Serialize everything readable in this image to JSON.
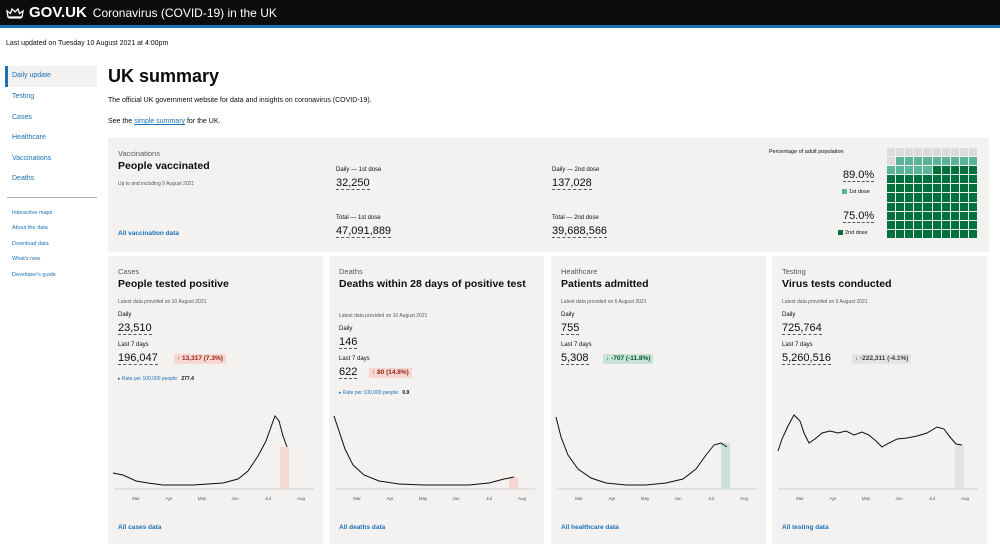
{
  "header": {
    "brand": "GOV.UK",
    "service": "Coronavirus (COVID-19) in the UK"
  },
  "last_updated": "Last updated on Tuesday 10 August 2021 at 4:00pm",
  "nav": {
    "primary": [
      "Daily update",
      "Testing",
      "Cases",
      "Healthcare",
      "Vaccinations",
      "Deaths"
    ],
    "secondary": [
      "Interactive maps",
      "About the data",
      "Download data",
      "What's new",
      "Developer's guide"
    ]
  },
  "page": {
    "title": "UK summary",
    "intro": "The official UK government website for data and insights on coronavirus (COVID-19).",
    "see_prefix": "See the ",
    "see_link": "simple summary",
    "see_suffix": " for the UK."
  },
  "vaccinations": {
    "caption": "Vaccinations",
    "heading": "People vaccinated",
    "subtext": "Up to and including 9 August 2021",
    "daily_first_label": "Daily — 1st dose",
    "daily_first": "32,250",
    "daily_second_label": "Daily — 2nd dose",
    "daily_second": "137,028",
    "total_first_label": "Total — 1st dose",
    "total_first": "47,091,889",
    "total_second_label": "Total — 2nd dose",
    "total_second": "39,688,566",
    "link": "All vaccination data",
    "pct_label": "Percentage of adult population",
    "pct_first": "89.0%",
    "pct_first_key": "1st dose",
    "pct_second": "75.0%",
    "pct_second_key": "2nd dose",
    "pct_first_value": 89.0,
    "pct_second_value": 75.0,
    "colors": {
      "first": "#5bb39a",
      "second": "#00703c",
      "empty": "#dcdcdc"
    }
  },
  "cards": [
    {
      "caption": "Cases",
      "heading": "People tested positive",
      "updated": "Latest data provided on 10 August 2021",
      "daily_label": "Daily",
      "daily": "23,510",
      "week_label": "Last 7 days",
      "week": "196,047",
      "change": "↑ 13,317 (7.3%)",
      "change_style": "red",
      "rate_label": "▸ Rate per 100,000 people:",
      "rate_value": "277.4",
      "link": "All cases data",
      "chart_months": [
        "Mar",
        "Apr",
        "May",
        "Jun",
        "Jul",
        "Aug"
      ]
    },
    {
      "caption": "Deaths",
      "heading": "Deaths within 28 days of positive test",
      "updated": "Latest data provided on 10 August 2021",
      "daily_label": "Daily",
      "daily": "146",
      "week_label": "Last 7 days",
      "week": "622",
      "change": "↑ 80 (14.8%)",
      "change_style": "red",
      "rate_label": "▸ Rate per 100,000 people:",
      "rate_value": "0.9",
      "link": "All deaths data",
      "chart_months": [
        "Mar",
        "Apr",
        "May",
        "Jun",
        "Jul",
        "Aug"
      ]
    },
    {
      "caption": "Healthcare",
      "heading": "Patients admitted",
      "updated": "Latest data provided on 6 August 2021",
      "daily_label": "Daily",
      "daily": "755",
      "week_label": "Last 7 days",
      "week": "5,308",
      "change": "↓ -707 (-11.8%)",
      "change_style": "green",
      "link": "All healthcare data",
      "chart_months": [
        "Mar",
        "Apr",
        "May",
        "Jun",
        "Jul",
        "Aug"
      ]
    },
    {
      "caption": "Testing",
      "heading": "Virus tests conducted",
      "updated": "Latest data provided on 9 August 2021",
      "daily_label": "Daily",
      "daily": "725,764",
      "week_label": "Last 7 days",
      "week": "5,260,516",
      "change": "↓ -222,311 (-4.1%)",
      "change_style": "grey",
      "link": "All testing data",
      "chart_months": [
        "Mar",
        "Apr",
        "May",
        "Jun",
        "Jul",
        "Aug"
      ]
    }
  ]
}
